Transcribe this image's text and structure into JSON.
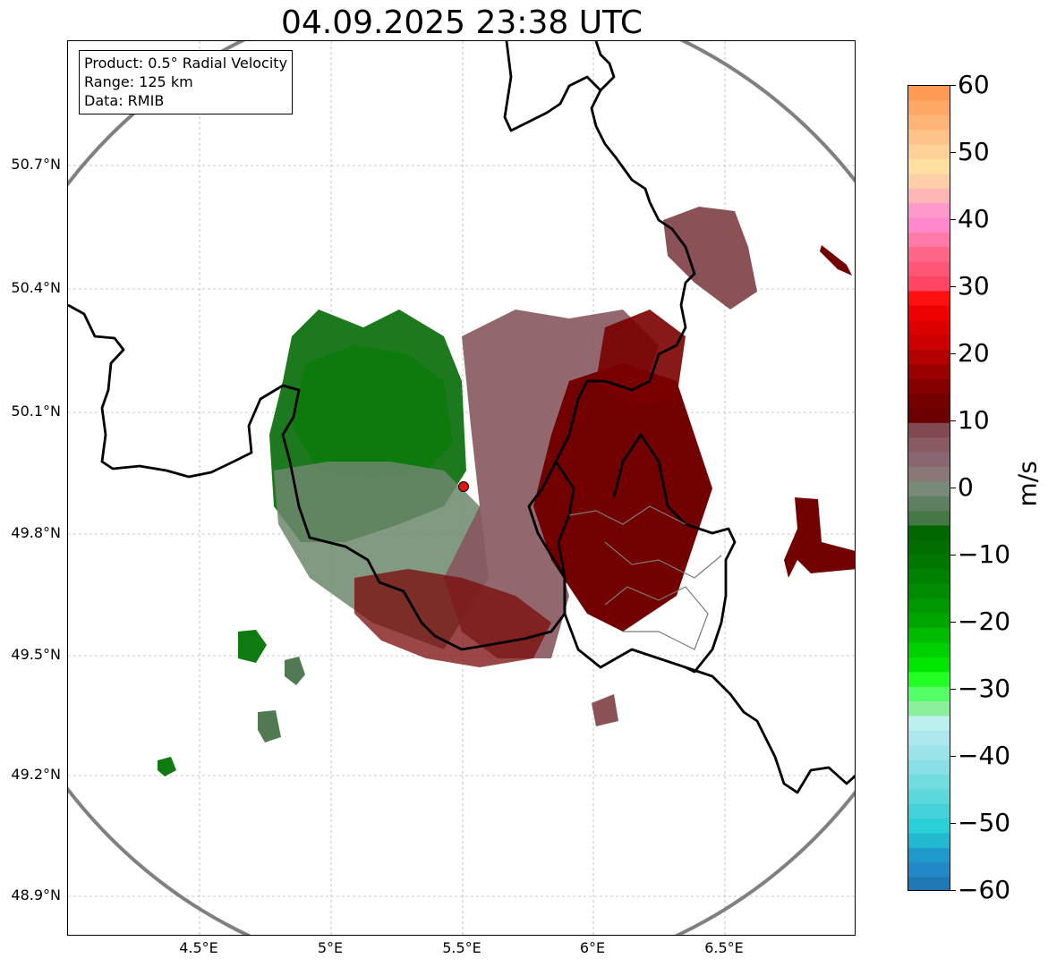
{
  "title": "04.09.2025 23:38 UTC",
  "info_box": {
    "product": "Product: 0.5° Radial Velocity",
    "range": "Range: 125 km",
    "data": "Data: RMIB"
  },
  "latitude_labels": [
    "50.7°N",
    "50.4°N",
    "50.1°N",
    "49.8°N",
    "49.5°N",
    "49.2°N",
    "48.9°N"
  ],
  "longitude_labels": [
    "4.5°E",
    "5°E",
    "5.5°E",
    "6°E",
    "6.5°E"
  ],
  "colorbar": {
    "unit": "m/s",
    "tick_labels": [
      "60",
      "50",
      "40",
      "30",
      "20",
      "10",
      "0",
      "−10",
      "−20",
      "−30",
      "−40",
      "−50",
      "−60"
    ],
    "min": -60,
    "max": 60
  },
  "radar_site": {
    "lon": 5.5,
    "lat": 49.91
  },
  "colors": {
    "incoming_green": "#007000",
    "outgoing_red": "#7a0000",
    "near_zero_mauve": "#8a5c62",
    "near_zero_gray_green": "#6f8a6f",
    "range_ring": "#808080",
    "border": "#000000"
  }
}
